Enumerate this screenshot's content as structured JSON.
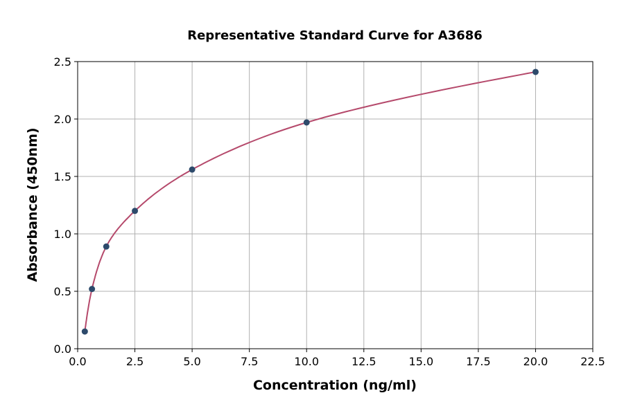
{
  "chart_data": {
    "type": "scatter",
    "title": "Representative Standard Curve for A3686",
    "xlabel": "Concentration (ng/ml)",
    "ylabel": "Absorbance (450nm)",
    "xlim": [
      0,
      22.5
    ],
    "ylim": [
      0,
      2.5
    ],
    "xticks": [
      "0.0",
      "2.5",
      "5.0",
      "7.5",
      "10.0",
      "12.5",
      "15.0",
      "17.5",
      "20.0",
      "22.5"
    ],
    "yticks": [
      "0.0",
      "0.5",
      "1.0",
      "1.5",
      "2.0",
      "2.5"
    ],
    "grid": true,
    "points": {
      "x": [
        0.3125,
        0.625,
        1.25,
        2.5,
        5,
        10,
        20
      ],
      "y": [
        0.15,
        0.52,
        0.89,
        1.2,
        1.56,
        1.97,
        2.41
      ]
    },
    "fit_curve": true,
    "colors": {
      "points": "#2d4a6b",
      "curve": "#b5496b",
      "grid": "#b0b0b0"
    }
  }
}
